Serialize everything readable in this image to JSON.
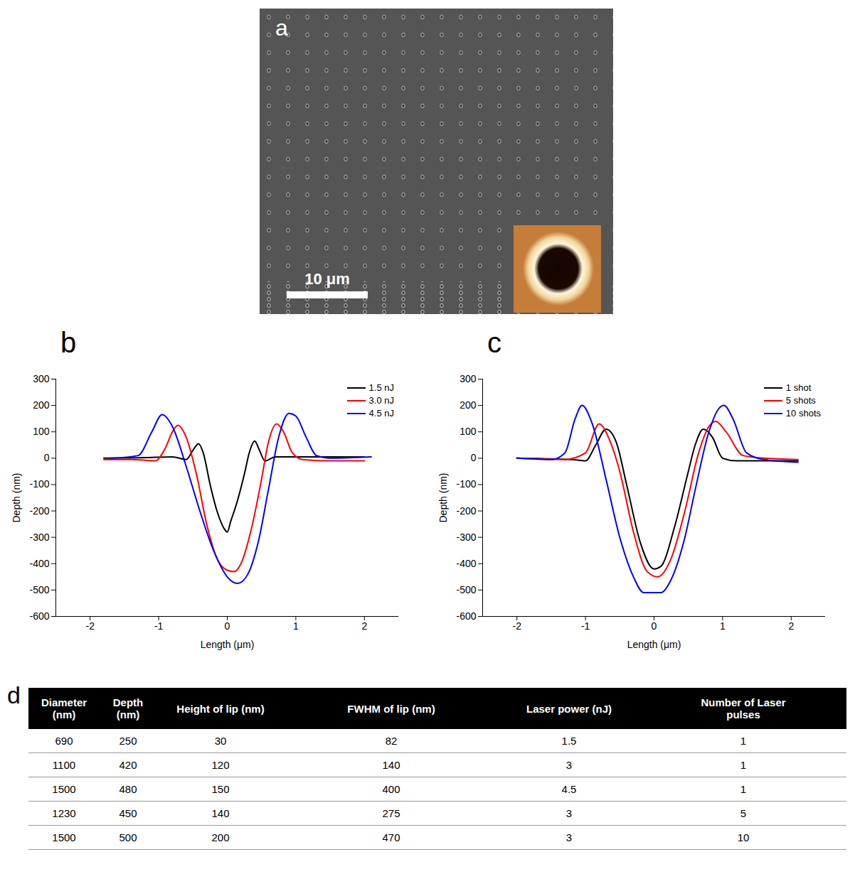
{
  "image_panel": {
    "panel": "a",
    "scale_bar": "10 μm"
  },
  "chart_data": [
    {
      "panel": "b",
      "type": "line",
      "x_label": "Length (μm)",
      "y_label": "Depth (nm)",
      "xlim": [
        -2.5,
        2.5
      ],
      "xticks": [
        -2,
        -1,
        0,
        1,
        2
      ],
      "ylim": [
        -600,
        300
      ],
      "yticks": [
        -600,
        -500,
        -400,
        -300,
        -200,
        -100,
        0,
        100,
        200,
        300
      ],
      "grid": false,
      "legend": "top-right",
      "series": [
        {
          "name": "1.5 nJ",
          "color": "#000000",
          "x": [
            -1.8,
            -1.2,
            -0.8,
            -0.6,
            -0.5,
            -0.42,
            -0.35,
            -0.25,
            -0.15,
            -0.05,
            0,
            0.05,
            0.15,
            0.25,
            0.32,
            0.4,
            0.47,
            0.55,
            0.7,
            1.2,
            2.0
          ],
          "values": [
            0,
            2,
            5,
            -5,
            30,
            55,
            20,
            -100,
            -200,
            -265,
            -280,
            -240,
            -160,
            -60,
            20,
            65,
            30,
            -10,
            5,
            5,
            5
          ]
        },
        {
          "name": "3.0 nJ",
          "color": "#ff0000",
          "x": [
            -1.8,
            -1.4,
            -1.05,
            -0.9,
            -0.8,
            -0.72,
            -0.6,
            -0.45,
            -0.3,
            -0.15,
            0,
            0.1,
            0.2,
            0.35,
            0.5,
            0.6,
            0.72,
            0.82,
            0.95,
            1.1,
            1.5,
            2.0
          ],
          "values": [
            -5,
            -5,
            -10,
            40,
            100,
            125,
            80,
            -60,
            -250,
            -380,
            -425,
            -430,
            -400,
            -270,
            -80,
            60,
            130,
            100,
            20,
            -5,
            -10,
            -10
          ]
        },
        {
          "name": "4.5 nJ",
          "color": "#0000ff",
          "x": [
            -1.7,
            -1.3,
            -1.1,
            -0.95,
            -0.8,
            -0.6,
            -0.4,
            -0.2,
            0,
            0.15,
            0.3,
            0.45,
            0.6,
            0.75,
            0.9,
            1.0,
            1.15,
            1.3,
            1.5,
            2.1
          ],
          "values": [
            0,
            10,
            100,
            165,
            120,
            -30,
            -200,
            -350,
            -450,
            -475,
            -440,
            -320,
            -120,
            80,
            170,
            160,
            80,
            10,
            0,
            5
          ]
        }
      ]
    },
    {
      "panel": "c",
      "type": "line",
      "x_label": "Length (μm)",
      "y_label": "Depth (nm)",
      "xlim": [
        -2.5,
        2.5
      ],
      "xticks": [
        -2,
        -1,
        0,
        1,
        2
      ],
      "ylim": [
        -600,
        300
      ],
      "yticks": [
        -600,
        -500,
        -400,
        -300,
        -200,
        -100,
        0,
        100,
        200,
        300
      ],
      "grid": false,
      "legend": "top-right",
      "series": [
        {
          "name": "1 shot",
          "color": "#000000",
          "x": [
            -2.0,
            -1.2,
            -1.0,
            -0.85,
            -0.7,
            -0.55,
            -0.4,
            -0.2,
            0,
            0.1,
            0.3,
            0.5,
            0.6,
            0.72,
            0.85,
            1.0,
            1.2,
            2.1
          ],
          "values": [
            0,
            -5,
            -10,
            50,
            110,
            60,
            -100,
            -320,
            -420,
            -410,
            -260,
            -50,
            50,
            110,
            80,
            0,
            -10,
            -10
          ]
        },
        {
          "name": "5 shots",
          "color": "#ff0000",
          "x": [
            -2.0,
            -1.3,
            -1.0,
            -0.8,
            -0.65,
            -0.5,
            -0.3,
            -0.1,
            0.05,
            0.25,
            0.45,
            0.65,
            0.8,
            0.9,
            1.05,
            1.3,
            1.6,
            2.1
          ],
          "values": [
            0,
            -5,
            20,
            130,
            70,
            -50,
            -280,
            -430,
            -450,
            -380,
            -200,
            20,
            120,
            140,
            100,
            10,
            0,
            -5
          ]
        },
        {
          "name": "10 shots",
          "color": "#0000ff",
          "x": [
            -2.0,
            -1.5,
            -1.3,
            -1.15,
            -1.05,
            -0.9,
            -0.7,
            -0.5,
            -0.3,
            -0.15,
            0.1,
            0.25,
            0.45,
            0.6,
            0.8,
            0.95,
            1.02,
            1.15,
            1.35,
            1.6,
            2.1
          ],
          "values": [
            0,
            -5,
            20,
            150,
            200,
            130,
            -80,
            -300,
            -450,
            -510,
            -510,
            -460,
            -300,
            -120,
            100,
            190,
            200,
            150,
            20,
            -5,
            -15
          ]
        }
      ]
    }
  ],
  "table": {
    "panel": "d",
    "columns": [
      "Diameter (nm)",
      "Depth (nm)",
      "Height of lip (nm)",
      "FWHM of lip (nm)",
      "Laser power (nJ)",
      "Number of Laser pulses"
    ],
    "rows": [
      [
        690,
        250,
        30,
        82,
        1.5,
        1
      ],
      [
        1100,
        420,
        120,
        140,
        3,
        1
      ],
      [
        1500,
        480,
        150,
        400,
        4.5,
        1
      ],
      [
        1230,
        450,
        140,
        275,
        3,
        5
      ],
      [
        1500,
        500,
        200,
        470,
        3,
        10
      ]
    ]
  }
}
